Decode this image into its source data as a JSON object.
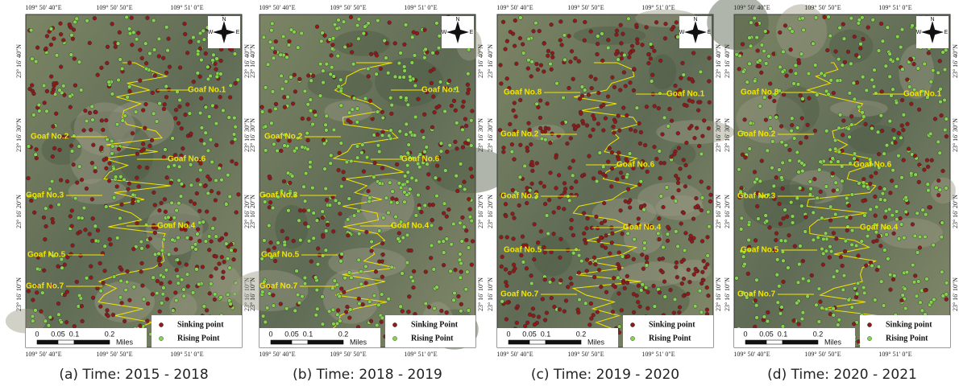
{
  "figure": {
    "panels": [
      {
        "caption": "(a) Time: 2015 - 2018",
        "top_labels": [
          "109° 50′ 40″E",
          "109° 50′ 50″E",
          "109° 51′ 0″E"
        ],
        "bottom_labels": [
          "109° 50′ 40″E",
          "109° 50′ 50″E",
          "109° 51′ 0″E"
        ],
        "lat_labels": [
          "23° 16′ 40″N",
          "23° 16′ 30″N",
          "23° 16′ 20″N",
          "23° 16′ 10″N"
        ],
        "goaf_labels": [
          "Goaf No.1",
          "Goaf No.2",
          "Goaf No.6",
          "Goaf No.3",
          "Goaf No.4",
          "Goaf No.5",
          "Goaf No.7"
        ],
        "legend": [
          "Sinking point",
          "Rising Point"
        ],
        "scale": [
          "0",
          "0.05",
          "0.1",
          "0.2",
          "Miles"
        ],
        "compass": [
          "N",
          "W",
          "E"
        ]
      },
      {
        "caption": "(b) Time: 2018 - 2019",
        "top_labels": [
          "109° 50′ 40″E",
          "109° 50′ 50″E",
          "109° 51′ 0″E"
        ],
        "bottom_labels": [
          "109° 50′ 40″E",
          "109° 50′ 50″E",
          "109° 51′ 0″E"
        ],
        "lat_labels": [
          "23° 16′ 40″N",
          "23° 16′ 30″N",
          "23° 16′ 20″N",
          "23° 16′ 10″N"
        ],
        "goaf_labels": [
          "Goaf No.1",
          "Goaf No.2",
          "Goaf No.6",
          "Goaf No.3",
          "Goaf No.4",
          "Goaf No.5",
          "Goaf No.7"
        ],
        "legend": [
          "Sinking Point",
          "Rising Point"
        ],
        "scale": [
          "0",
          "0.05",
          "0.1",
          "0.2",
          "Miles"
        ],
        "compass": [
          "N",
          "W",
          "E"
        ]
      },
      {
        "caption": "(c) Time: 2019 - 2020",
        "top_labels": [
          "109° 50′ 40″E",
          "109° 50′ 50″E",
          "109° 51′ 0″E"
        ],
        "bottom_labels": [
          "109° 50′ 40″E",
          "109° 50′ 50″E",
          "109° 51′ 0″E"
        ],
        "lat_labels": [
          "23° 16′ 40″N",
          "23° 16′ 30″N",
          "23° 16′ 20″N",
          "23° 16′ 10″N"
        ],
        "goaf_labels": [
          "Goaf No.8",
          "Goaf No.1",
          "Goaf No.2",
          "Goaf No.6",
          "Goaf No.3",
          "Goaf No.4",
          "Goaf No.5",
          "Goaf No.7"
        ],
        "legend": [
          "Sinking point",
          "Rising Point"
        ],
        "scale": [
          "0",
          "0.05",
          "0.1",
          "0.2",
          "Miles"
        ],
        "compass": [
          "N",
          "W",
          "E"
        ]
      },
      {
        "caption": "(d) Time: 2020 - 2021",
        "top_labels": [
          "109° 50′ 40″E",
          "109° 50′ 50″E",
          "109° 51′ 0″E"
        ],
        "bottom_labels": [
          "109° 50′ 40″E",
          "109° 50′ 50″E",
          "109° 51′ 0″E"
        ],
        "lat_labels": [
          "23° 16′ 40″N",
          "23° 16′ 30″N",
          "23° 16′ 20″N",
          "23° 16′ 10″N"
        ],
        "goaf_labels": [
          "Goaf No.8",
          "Goaf No.1",
          "Goaf No.2",
          "Goaf No.6",
          "Goaf No.3",
          "Goaf No.4",
          "Goaf No.5",
          "Goaf No.7"
        ],
        "legend": [
          "Sinking point",
          "Rising Point"
        ],
        "scale": [
          "0",
          "0.05",
          "0.1",
          "0.2",
          "Miles"
        ],
        "compass": [
          "N",
          "W",
          "E"
        ]
      }
    ]
  }
}
